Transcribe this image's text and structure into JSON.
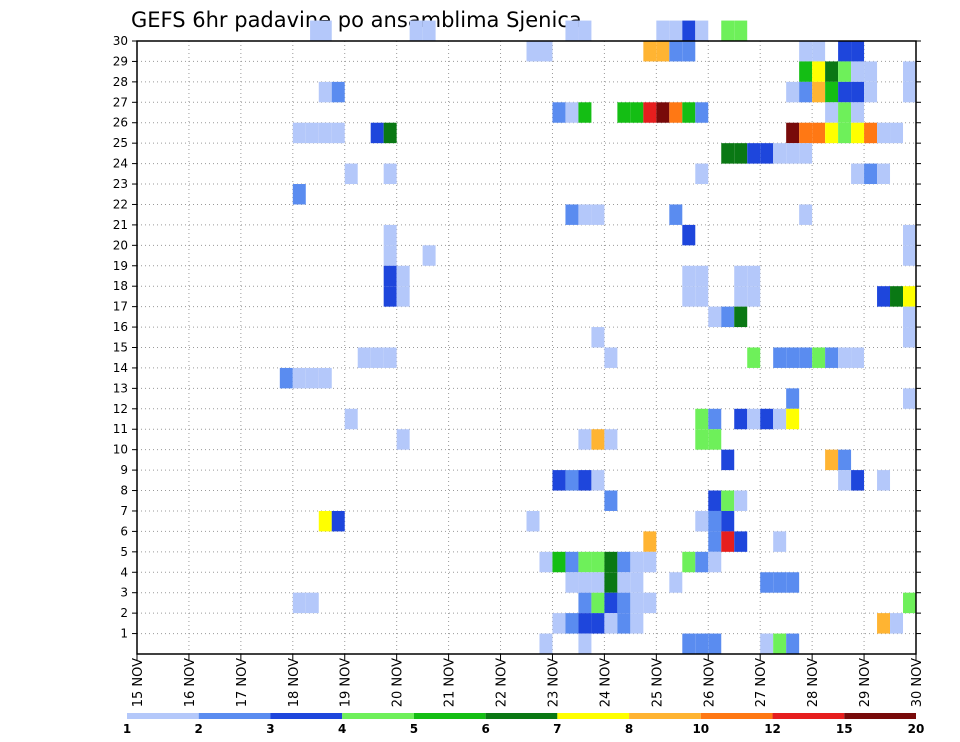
{
  "chart_data": {
    "type": "heatmap",
    "title": "GEFS 6hr padavine po ansamblima Sjenica",
    "xlabel": "",
    "ylabel": "",
    "x_tick_labels": [
      "15 NOV",
      "16 NOV",
      "17 NOV",
      "18 NOV",
      "19 NOV",
      "20 NOV",
      "21 NOV",
      "22 NOV",
      "23 NOV",
      "24 NOV",
      "25 NOV",
      "26 NOV",
      "27 NOV",
      "28 NOV",
      "29 NOV",
      "30 NOV"
    ],
    "y_tick_labels": [
      "1",
      "2",
      "3",
      "4",
      "5",
      "6",
      "7",
      "8",
      "9",
      "10",
      "11",
      "12",
      "13",
      "14",
      "15",
      "16",
      "17",
      "18",
      "19",
      "20",
      "21",
      "22",
      "23",
      "24",
      "25",
      "26",
      "27",
      "28",
      "29",
      "30"
    ],
    "x_range_days": [
      15,
      30
    ],
    "time_step_hours": 6,
    "y_range": [
      0,
      30
    ],
    "grid": true,
    "colorbar": {
      "ticks": [
        "1",
        "2",
        "3",
        "4",
        "5",
        "6",
        "7",
        "8",
        "10",
        "12",
        "15",
        "20"
      ],
      "colors": [
        "#b4c8fa",
        "#5a8cf0",
        "#1e46dc",
        "#6ef05a",
        "#14be14",
        "#0a7814",
        "#ffff00",
        "#ffb432",
        "#ff7814",
        "#e61e1e",
        "#780a0a"
      ]
    },
    "cells": [
      {
        "member": 30,
        "x": [
          18.333,
          18.5,
          20.25,
          20.5,
          23.25,
          23.5,
          25.0,
          25.25,
          25.5,
          25.75,
          26.25,
          26.5
        ],
        "c": [
          0,
          0,
          0,
          0,
          0,
          0,
          0,
          0,
          2,
          0,
          3,
          3
        ]
      },
      {
        "member": 29,
        "x": [
          22.5,
          22.75,
          24.75,
          25.0,
          25.25,
          25.5,
          27.75,
          28.0,
          28.5,
          28.75
        ],
        "c": [
          0,
          0,
          7,
          7,
          1,
          1,
          0,
          0,
          2,
          2
        ]
      },
      {
        "member": 28,
        "x": [
          27.75,
          28.0,
          28.25,
          28.5,
          28.75,
          29.0,
          29.75,
          30.0
        ],
        "c": [
          4,
          6,
          5,
          3,
          0,
          0,
          0,
          0
        ]
      },
      {
        "member": 27,
        "x": [
          18.5,
          18.75,
          27.5,
          27.75,
          28.0,
          28.25,
          28.5,
          28.75,
          29.0,
          29.75
        ],
        "c": [
          0,
          1,
          0,
          1,
          7,
          4,
          2,
          2,
          0,
          0
        ]
      },
      {
        "member": 26,
        "x": [
          23.0,
          23.25,
          23.5,
          24.25,
          24.5,
          24.75,
          25.0,
          25.25,
          25.5,
          25.75,
          28.25,
          28.5,
          28.75
        ],
        "c": [
          1,
          0,
          4,
          4,
          4,
          9,
          10,
          8,
          4,
          1,
          0,
          3,
          0
        ]
      },
      {
        "member": 25,
        "x": [
          18.0,
          18.25,
          18.5,
          18.75,
          19.5,
          19.75,
          27.5,
          27.75,
          28.0,
          28.25,
          28.5,
          28.75,
          29.0,
          29.25,
          29.5
        ],
        "c": [
          0,
          0,
          0,
          0,
          2,
          5,
          10,
          8,
          8,
          6,
          3,
          6,
          8,
          0,
          0
        ]
      },
      {
        "member": 24,
        "x": [
          26.25,
          26.5,
          26.75,
          27.0,
          27.25,
          27.5,
          27.75
        ],
        "c": [
          5,
          5,
          2,
          2,
          0,
          0,
          0
        ]
      },
      {
        "member": 23,
        "x": [
          19.0,
          19.75,
          25.75,
          28.75,
          29.0,
          29.25
        ],
        "c": [
          0,
          0,
          0,
          0,
          1,
          0
        ]
      },
      {
        "member": 22,
        "x": [
          18.0
        ],
        "c": [
          1
        ]
      },
      {
        "member": 21,
        "x": [
          23.25,
          23.5,
          23.75,
          25.25,
          27.75
        ],
        "c": [
          1,
          0,
          0,
          1,
          0
        ]
      },
      {
        "member": 20,
        "x": [
          19.75,
          25.5,
          29.75
        ],
        "c": [
          0,
          2,
          0
        ]
      },
      {
        "member": 19,
        "x": [
          19.75,
          20.5,
          29.75
        ],
        "c": [
          0,
          0,
          0
        ]
      },
      {
        "member": 18,
        "x": [
          19.75,
          20.0,
          25.5,
          25.75,
          26.5,
          26.75
        ],
        "c": [
          2,
          0,
          0,
          0,
          0,
          0
        ]
      },
      {
        "member": 17,
        "x": [
          19.75,
          20.0,
          25.5,
          25.75,
          26.5,
          26.75,
          29.25,
          29.5,
          29.75,
          30.0
        ],
        "c": [
          2,
          0,
          0,
          0,
          0,
          0,
          2,
          5,
          6,
          1
        ]
      },
      {
        "member": 16,
        "x": [
          26.0,
          26.25,
          26.5,
          29.75
        ],
        "c": [
          0,
          1,
          5,
          0
        ]
      },
      {
        "member": 15,
        "x": [
          23.75,
          29.75
        ],
        "c": [
          0,
          0
        ]
      },
      {
        "member": 14,
        "x": [
          19.25,
          19.5,
          19.75,
          24.0,
          26.75,
          27.25,
          27.5,
          27.75,
          28.0,
          28.25,
          28.5,
          28.75
        ],
        "c": [
          0,
          0,
          0,
          0,
          3,
          1,
          1,
          1,
          3,
          1,
          0,
          0
        ]
      },
      {
        "member": 13,
        "x": [
          17.75,
          18.0,
          18.25,
          18.5
        ],
        "c": [
          1,
          0,
          0,
          0
        ]
      },
      {
        "member": 12,
        "x": [
          27.5,
          29.75
        ],
        "c": [
          1,
          0
        ]
      },
      {
        "member": 11,
        "x": [
          19.0,
          25.75,
          26.0,
          26.5,
          26.75,
          27.0,
          27.25,
          27.5
        ],
        "c": [
          0,
          3,
          1,
          2,
          0,
          2,
          0,
          6
        ]
      },
      {
        "member": 10,
        "x": [
          20.0,
          23.5,
          23.75,
          24.0,
          25.75,
          26.0
        ],
        "c": [
          0,
          0,
          7,
          0,
          3,
          3
        ]
      },
      {
        "member": 9,
        "x": [
          26.25,
          28.25,
          28.5
        ],
        "c": [
          2,
          7,
          1
        ]
      },
      {
        "member": 8,
        "x": [
          23.0,
          23.25,
          23.5,
          23.75,
          28.5,
          28.75,
          29.25
        ],
        "c": [
          2,
          1,
          2,
          0,
          0,
          2,
          0
        ]
      },
      {
        "member": 7,
        "x": [
          24.0,
          26.0,
          26.25,
          26.5
        ],
        "c": [
          1,
          2,
          3,
          0
        ]
      },
      {
        "member": 6,
        "x": [
          18.5,
          18.75,
          22.5,
          25.75,
          26.0,
          26.25,
          30.0
        ],
        "c": [
          6,
          2,
          0,
          0,
          1,
          2,
          0
        ]
      },
      {
        "member": 5,
        "x": [
          24.75,
          26.0,
          26.25,
          26.5,
          27.25
        ],
        "c": [
          7,
          1,
          9,
          2,
          0
        ]
      },
      {
        "member": 4,
        "x": [
          22.75,
          23.0,
          23.25,
          23.5,
          23.75,
          24.0,
          24.25,
          24.5,
          24.75,
          25.5,
          25.75,
          26.0
        ],
        "c": [
          0,
          4,
          1,
          3,
          3,
          5,
          1,
          0,
          0,
          3,
          1,
          0
        ]
      },
      {
        "member": 3,
        "x": [
          23.25,
          23.5,
          23.75,
          24.0,
          24.25,
          24.5,
          25.25,
          27.0,
          27.25,
          27.5
        ],
        "c": [
          0,
          0,
          0,
          5,
          0,
          0,
          0,
          1,
          1,
          1
        ]
      },
      {
        "member": 2,
        "x": [
          18.0,
          18.25,
          23.5,
          23.75,
          24.0,
          24.25,
          24.5,
          24.75,
          29.75
        ],
        "c": [
          0,
          0,
          1,
          3,
          2,
          1,
          0,
          0,
          3
        ]
      },
      {
        "member": 1,
        "x": [
          23.0,
          23.25,
          23.5,
          23.75,
          24.0,
          24.25,
          24.5,
          29.25,
          29.5
        ],
        "c": [
          0,
          1,
          2,
          2,
          0,
          1,
          0,
          7,
          0
        ]
      },
      {
        "member": 0,
        "x": [
          22.75,
          23.5,
          25.5,
          25.75,
          26.0,
          27.0,
          27.25,
          27.5
        ],
        "c": [
          0,
          0,
          1,
          1,
          1,
          0,
          3,
          1
        ]
      }
    ]
  }
}
